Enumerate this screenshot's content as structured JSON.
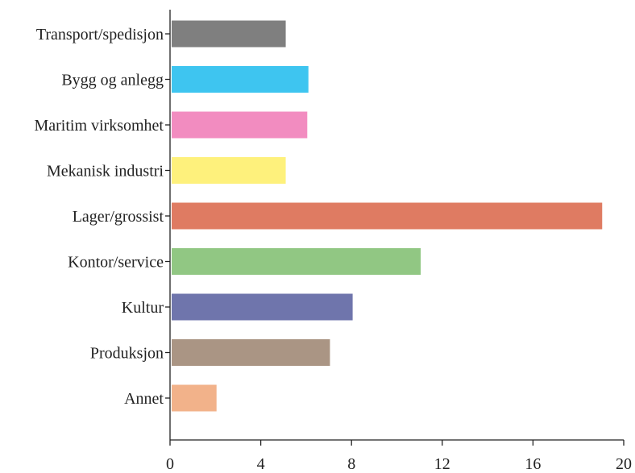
{
  "chart_data": {
    "type": "bar",
    "orientation": "horizontal",
    "categories": [
      "Transport/spedisjon",
      "Bygg og anlegg",
      "Maritim virksomhet",
      "Mekanisk industri",
      "Lager/grossist",
      "Kontor/service",
      "Kultur",
      "Produksjon",
      "Annet"
    ],
    "values": [
      5.1,
      6.1,
      6.05,
      5.1,
      19.05,
      11.05,
      8.05,
      7.05,
      2.05
    ],
    "colors": [
      "#7f7f7f",
      "#3ec5f0",
      "#f28cc0",
      "#fef17c",
      "#df7b62",
      "#91c783",
      "#6f75ac",
      "#aa9584",
      "#f2b28a"
    ],
    "xticks": [
      "0",
      "4",
      "8",
      "12",
      "16",
      "20"
    ],
    "xlim": [
      0,
      20
    ],
    "title": "",
    "xlabel": "",
    "ylabel": "",
    "grid": false,
    "legend": "none"
  }
}
